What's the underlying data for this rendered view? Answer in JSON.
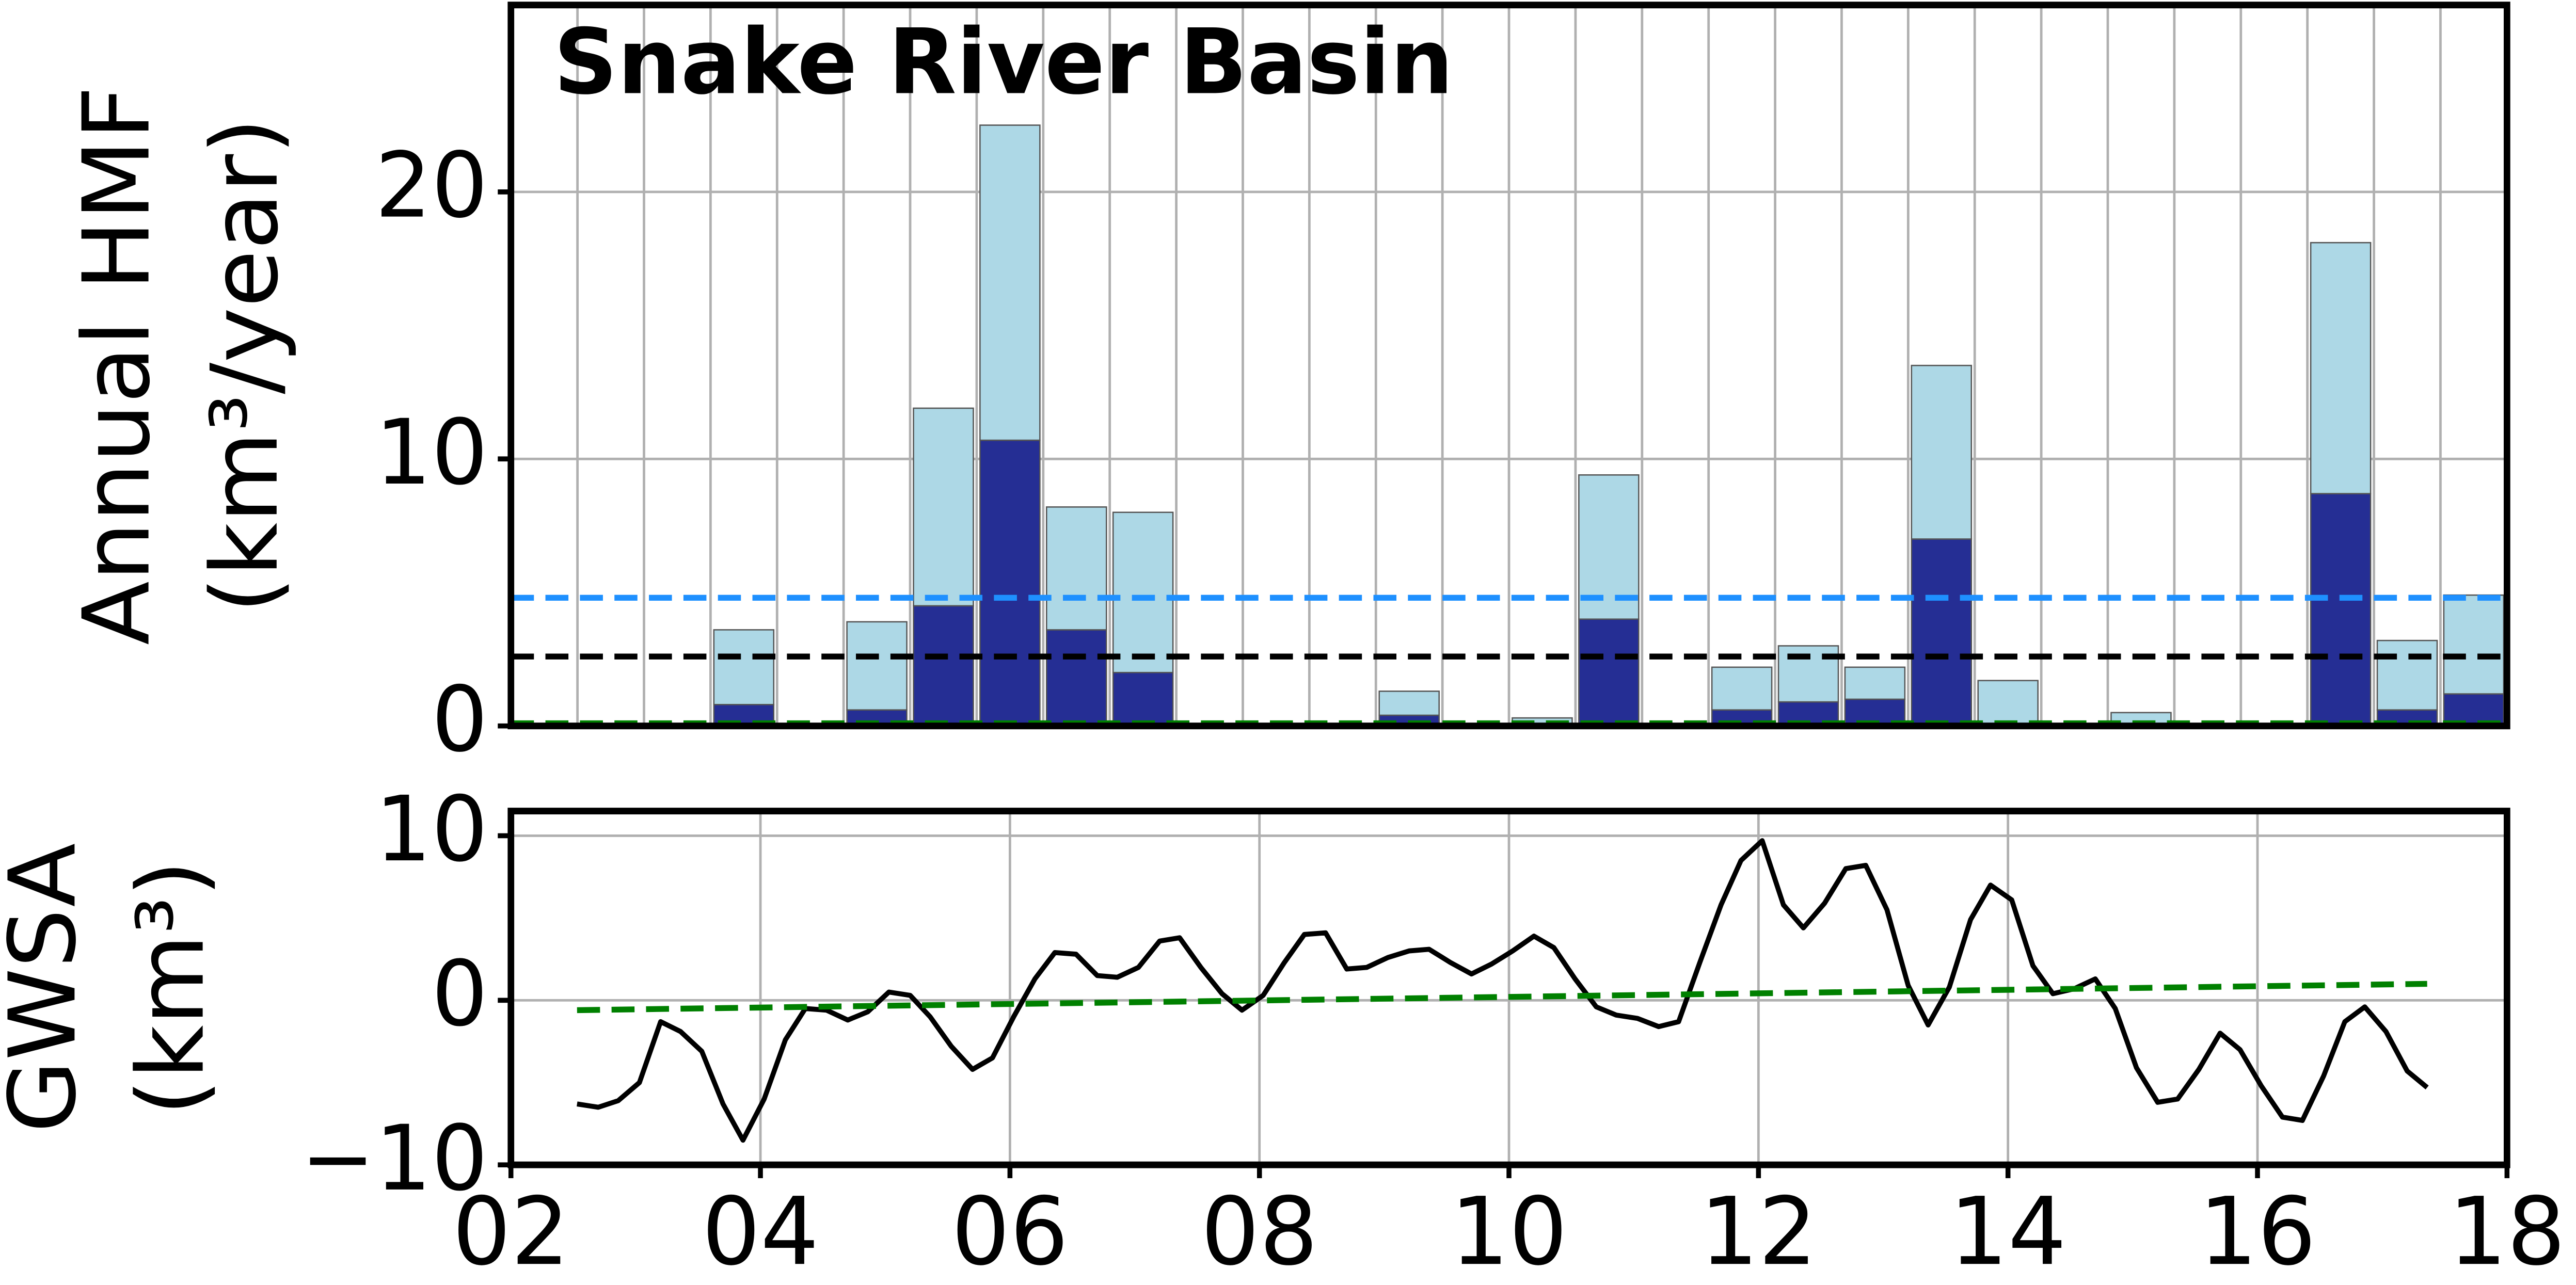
{
  "chart_data": [
    {
      "type": "bar",
      "title": "Snake River Basin",
      "ylabel": [
        "Annual HMF",
        "(km³/year)"
      ],
      "categories": [
        null,
        null,
        null,
        null,
        null,
        null,
        null,
        null,
        null,
        null,
        null,
        null,
        null,
        null,
        null,
        null,
        null,
        null,
        null,
        null,
        null,
        null,
        null,
        null,
        null,
        null,
        null,
        null,
        null,
        null
      ],
      "series": [
        {
          "color": "#252e94",
          "values": [
            0,
            0,
            0,
            0.8,
            0,
            0.6,
            4.5,
            10.7,
            3.6,
            2.0,
            0,
            0,
            0,
            0.4,
            0,
            0,
            4.0,
            0,
            0.6,
            0.9,
            1.0,
            7.0,
            0,
            0,
            0,
            0,
            0,
            8.7,
            0.6,
            1.2
          ]
        },
        {
          "color": "#add8e6",
          "values": [
            0,
            0,
            0,
            2.8,
            0,
            3.3,
            7.4,
            11.8,
            4.6,
            6.0,
            0,
            0,
            0,
            0.9,
            0,
            0.3,
            5.4,
            0,
            1.6,
            2.1,
            1.2,
            6.5,
            1.7,
            0,
            0.5,
            0,
            0,
            9.4,
            2.6,
            3.7
          ]
        }
      ],
      "hlines": [
        {
          "value": 4.8,
          "color": "#1e90ff"
        },
        {
          "value": 2.6,
          "color": "#000000"
        },
        {
          "value": 0.1,
          "color": "#008000"
        }
      ],
      "ylim": [
        0,
        27
      ],
      "yticks": [
        0,
        10,
        20
      ],
      "grid": true
    },
    {
      "type": "line",
      "ylabel": [
        "GWSA",
        "(km³)"
      ],
      "xlim": [
        2,
        18
      ],
      "xticks": [
        {
          "value": 2,
          "label": "02"
        },
        {
          "value": 4,
          "label": "04"
        },
        {
          "value": 6,
          "label": "06"
        },
        {
          "value": 8,
          "label": "08"
        },
        10,
        12,
        14,
        16,
        18
      ],
      "ylim": [
        -10,
        11.5
      ],
      "yticks": [
        {
          "value": -10,
          "label": "−10"
        },
        0,
        10
      ],
      "grid": true,
      "series": [
        {
          "color": "#000000",
          "dash": false,
          "x": [
            2.53,
            2.7,
            2.86,
            3.03,
            3.2,
            3.36,
            3.53,
            3.7,
            3.86,
            4.03,
            4.2,
            4.36,
            4.53,
            4.7,
            4.86,
            5.03,
            5.2,
            5.36,
            5.53,
            5.7,
            5.86,
            6.03,
            6.2,
            6.36,
            6.53,
            6.7,
            6.86,
            7.03,
            7.2,
            7.36,
            7.53,
            7.7,
            7.86,
            8.03,
            8.2,
            8.36,
            8.53,
            8.7,
            8.86,
            9.03,
            9.2,
            9.36,
            9.53,
            9.7,
            9.86,
            10.03,
            10.2,
            10.36,
            10.53,
            10.7,
            10.86,
            11.03,
            11.2,
            11.36,
            11.53,
            11.7,
            11.86,
            12.03,
            12.2,
            12.36,
            12.53,
            12.7,
            12.86,
            13.03,
            13.2,
            13.36,
            13.53,
            13.7,
            13.86,
            14.03,
            14.2,
            14.36,
            14.53,
            14.7,
            14.86,
            15.03,
            15.2,
            15.36,
            15.53,
            15.7,
            15.86,
            16.03,
            16.2,
            16.36,
            16.53,
            16.7,
            16.86,
            17.03,
            17.2,
            17.36
          ],
          "values": [
            -6.3,
            -6.5,
            -6.1,
            -5.0,
            -1.3,
            -1.9,
            -3.1,
            -6.3,
            -8.5,
            -6.0,
            -2.4,
            -0.5,
            -0.6,
            -1.2,
            -0.7,
            0.5,
            0.3,
            -1.0,
            -2.8,
            -4.2,
            -3.5,
            -1.0,
            1.3,
            2.9,
            2.8,
            1.5,
            1.4,
            2.0,
            3.6,
            3.8,
            2.0,
            0.4,
            -0.6,
            0.3,
            2.3,
            4.0,
            4.1,
            1.9,
            2.0,
            2.6,
            3.0,
            3.1,
            2.3,
            1.6,
            2.2,
            3.0,
            3.9,
            3.2,
            1.3,
            -0.4,
            -0.9,
            -1.1,
            -1.6,
            -1.3,
            2.3,
            5.8,
            8.5,
            9.7,
            5.8,
            4.4,
            5.9,
            8.0,
            8.2,
            5.5,
            0.9,
            -1.5,
            0.8,
            4.9,
            7.0,
            6.1,
            2.1,
            0.4,
            0.7,
            1.3,
            -0.5,
            -4.1,
            -6.2,
            -6.0,
            -4.2,
            -2.0,
            -3.0,
            -5.2,
            -7.1,
            -7.3,
            -4.6,
            -1.3,
            -0.4,
            -1.9,
            -4.3,
            -5.3
          ]
        },
        {
          "color": "#008000",
          "dash": true,
          "x": [
            2.53,
            17.36
          ],
          "values": [
            -0.6,
            1.0
          ]
        }
      ]
    }
  ]
}
